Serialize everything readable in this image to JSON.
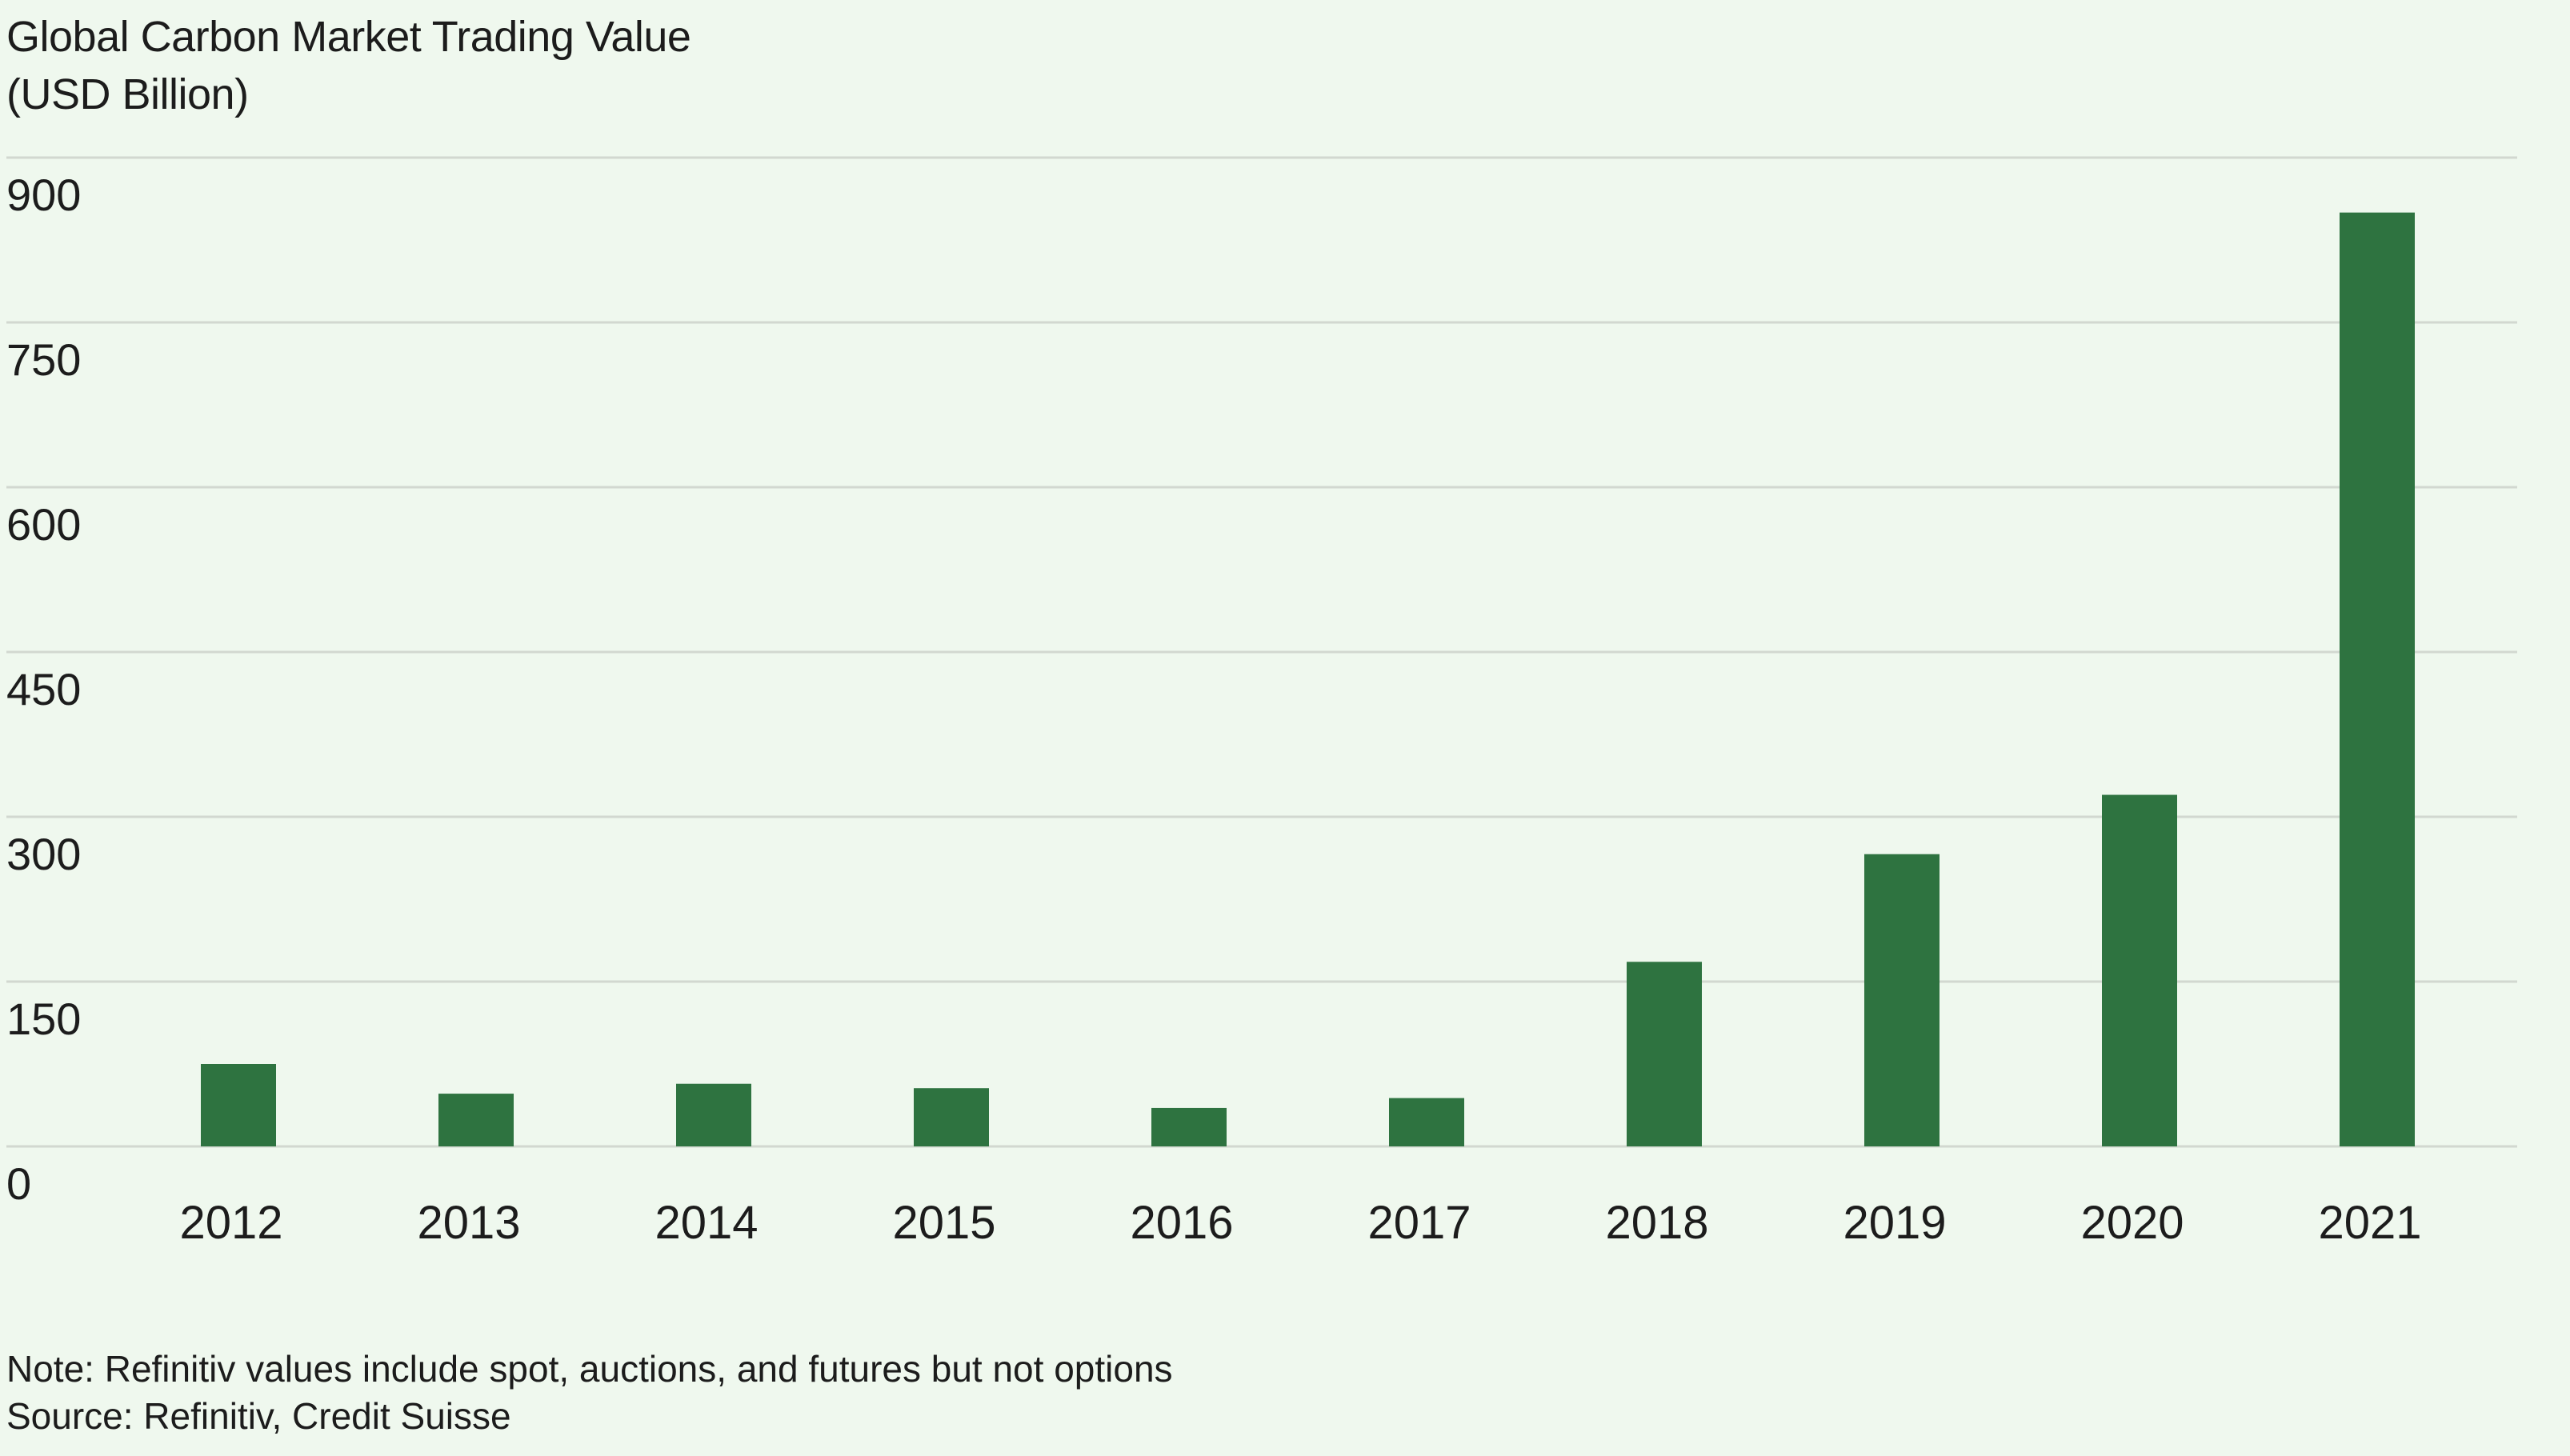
{
  "chart_data": {
    "type": "bar",
    "title": "Global Carbon Market Trading Value",
    "subtitle": "(USD Billion)",
    "xlabel": "",
    "ylabel": "",
    "categories": [
      "2012",
      "2013",
      "2014",
      "2015",
      "2016",
      "2017",
      "2018",
      "2019",
      "2020",
      "2021"
    ],
    "values": [
      75,
      48,
      57,
      53,
      35,
      44,
      168,
      266,
      320,
      850
    ],
    "ylim": [
      0,
      900
    ],
    "yticks": [
      0,
      150,
      300,
      450,
      600,
      750,
      900
    ],
    "ytick_labels": [
      "0",
      "150",
      "300",
      "450",
      "600",
      "750",
      "900"
    ],
    "grid": "horizontal",
    "legend": "none",
    "colors": {
      "bar": "#2e7340",
      "grid": "#d2d8d0",
      "background": "#eff8ee",
      "text": "#1c1c1c"
    },
    "note": "Note: Refinitiv values include spot, auctions, and futures but not options",
    "source": "Source: Refinitiv, Credit Suisse"
  }
}
